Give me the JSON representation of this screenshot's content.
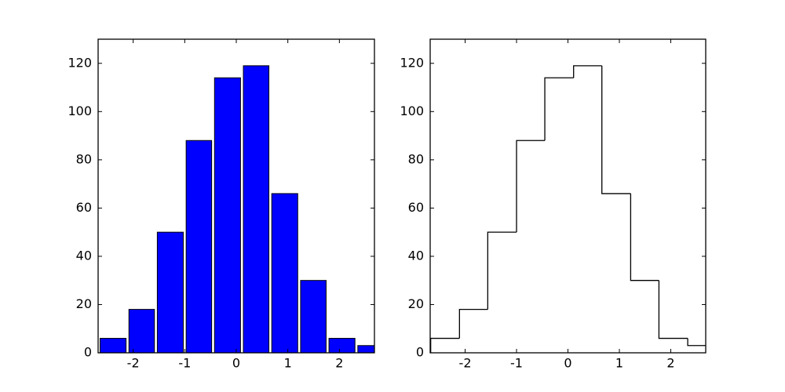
{
  "chart_data": [
    {
      "type": "histogram",
      "histtype": "bar",
      "color": "#0000ff",
      "edgecolor": "#000000",
      "bins": [
        -2.67,
        -2.11,
        -1.56,
        -1.0,
        -0.45,
        0.11,
        0.66,
        1.22,
        1.77,
        2.33,
        2.88
      ],
      "values": [
        6,
        18,
        50,
        88,
        114,
        119,
        66,
        30,
        6,
        3
      ],
      "xlim": [
        -2.68,
        2.68
      ],
      "ylim": [
        0,
        130
      ],
      "xticks": [
        -2,
        -1,
        0,
        1,
        2
      ],
      "yticks": [
        0,
        20,
        40,
        60,
        80,
        100,
        120
      ]
    },
    {
      "type": "histogram",
      "histtype": "step",
      "color": "#000000",
      "bins": [
        -2.67,
        -2.11,
        -1.56,
        -1.0,
        -0.45,
        0.11,
        0.66,
        1.22,
        1.77,
        2.33,
        2.88
      ],
      "values": [
        6,
        18,
        50,
        88,
        114,
        119,
        66,
        30,
        6,
        3
      ],
      "xlim": [
        -2.68,
        2.68
      ],
      "ylim": [
        0,
        130
      ],
      "xticks": [
        -2,
        -1,
        0,
        1,
        2
      ],
      "yticks": [
        0,
        20,
        40,
        60,
        80,
        100,
        120
      ]
    }
  ]
}
